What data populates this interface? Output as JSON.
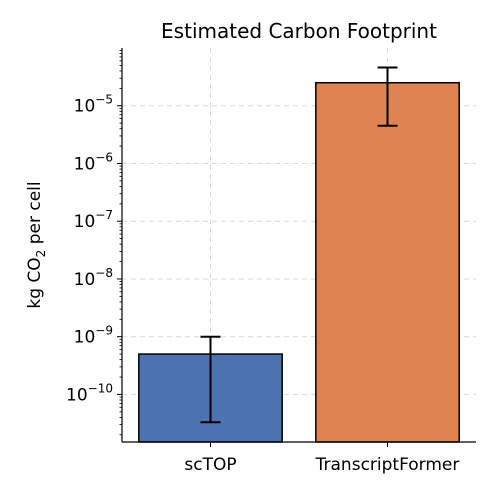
{
  "chart_data": {
    "type": "bar",
    "title": "Estimated Carbon Footprint",
    "ylabel_main": "kg CO",
    "ylabel_sub": "2",
    "ylabel_rest": " per cell",
    "xlabel": "",
    "yscale": "log",
    "ylim": [
      1.5e-11,
      0.0001
    ],
    "grid": true,
    "categories": [
      "scTOP",
      "TranscriptFormer"
    ],
    "values": [
      5e-10,
      2.5e-05
    ],
    "error_low": [
      3.3e-11,
      4.5e-06
    ],
    "error_high": [
      1e-09,
      4.6e-05
    ],
    "colors": [
      "#4c72b0",
      "#dd8452"
    ],
    "y_ticks": [
      {
        "value": 1e-10,
        "base": "10",
        "exp": "−10"
      },
      {
        "value": 1e-09,
        "base": "10",
        "exp": "−9"
      },
      {
        "value": 1e-08,
        "base": "10",
        "exp": "−8"
      },
      {
        "value": 1e-07,
        "base": "10",
        "exp": "−7"
      },
      {
        "value": 1e-06,
        "base": "10",
        "exp": "−6"
      },
      {
        "value": 1e-05,
        "base": "10",
        "exp": "−5"
      }
    ]
  }
}
